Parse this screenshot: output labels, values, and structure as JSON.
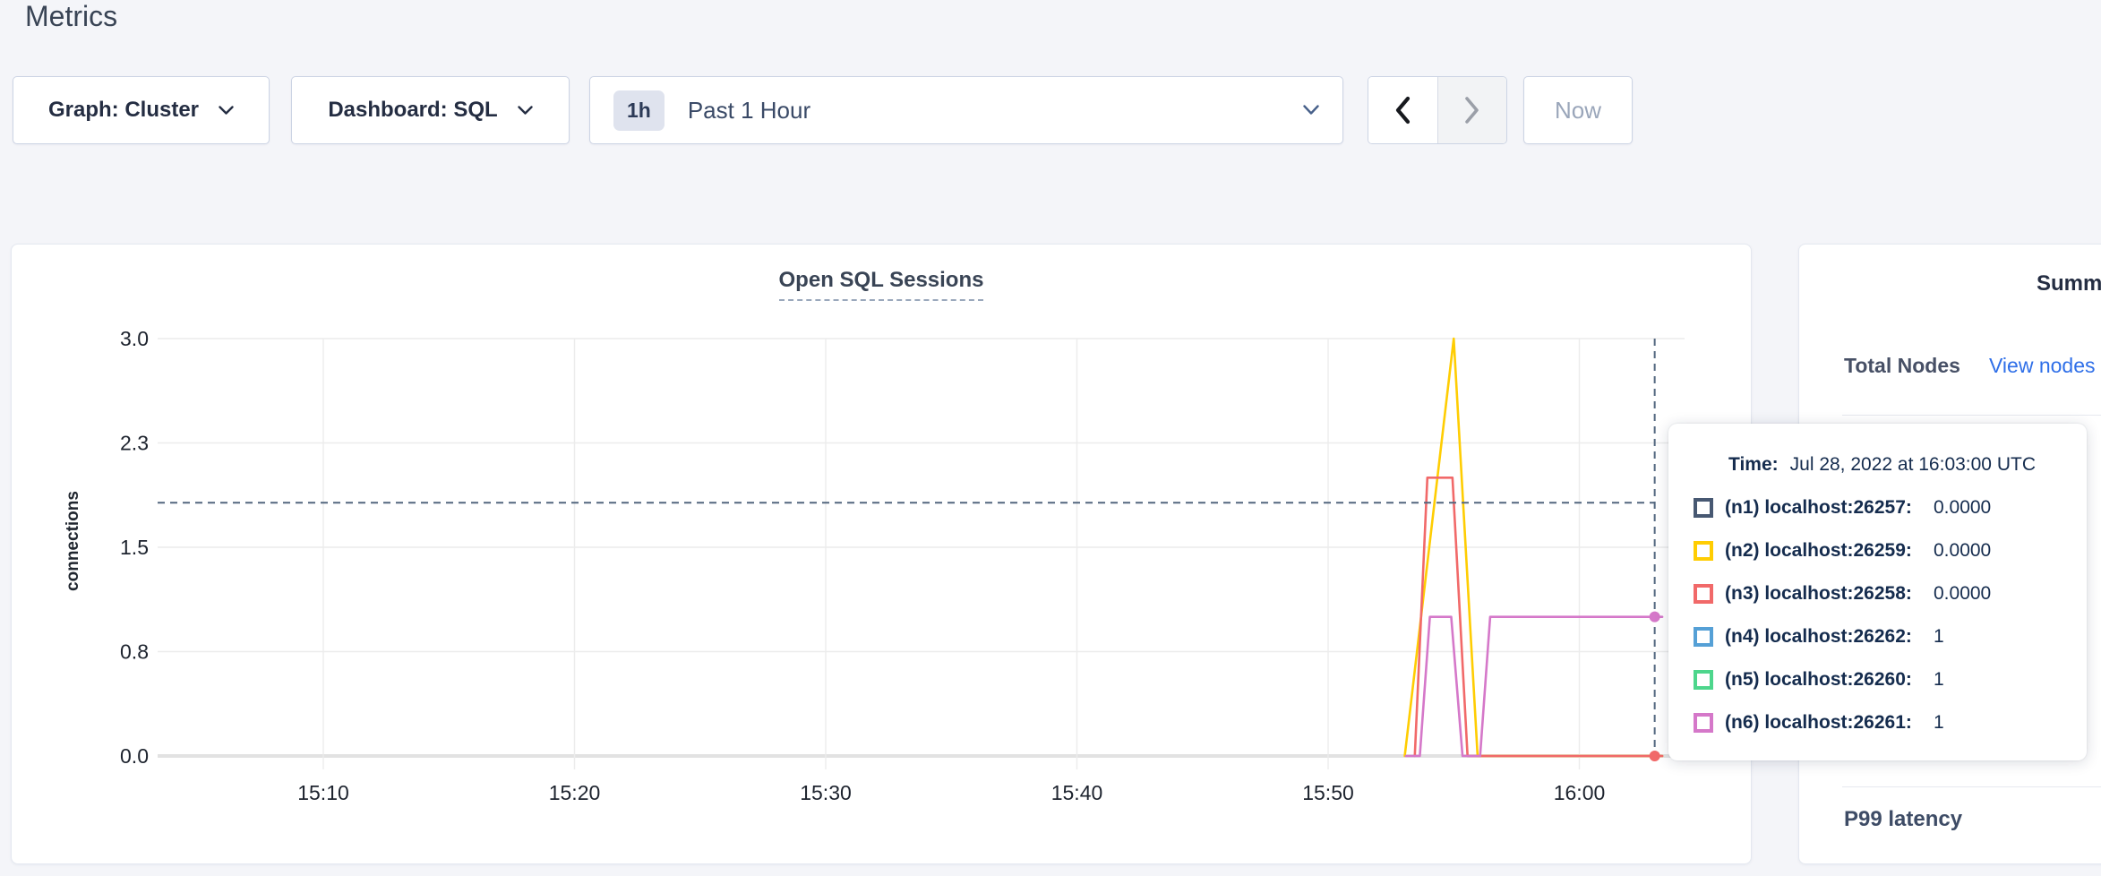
{
  "page": {
    "title": "Metrics"
  },
  "controls": {
    "graph_dropdown": {
      "label": "Graph: Cluster"
    },
    "dashboard_dropdown": {
      "label": "Dashboard: SQL"
    },
    "time_range": {
      "badge": "1h",
      "label": "Past 1 Hour"
    },
    "prev_button": {
      "enabled": true
    },
    "next_button": {
      "enabled": false
    },
    "now_button": {
      "label": "Now",
      "enabled": false
    }
  },
  "chart_data": {
    "type": "line",
    "title": "Open SQL Sessions",
    "ylabel": "connections",
    "ylim": [
      0,
      3
    ],
    "grid": true,
    "yticks": [
      {
        "v": 0,
        "label": "0.0"
      },
      {
        "v": 0.75,
        "label": "0.8"
      },
      {
        "v": 1.5,
        "label": "1.5"
      },
      {
        "v": 2.25,
        "label": "2.3"
      },
      {
        "v": 3,
        "label": "3.0"
      }
    ],
    "xticks": [
      {
        "t": 10,
        "label": "15:10"
      },
      {
        "t": 20,
        "label": "15:20"
      },
      {
        "t": 30,
        "label": "15:30"
      },
      {
        "t": 40,
        "label": "15:40"
      },
      {
        "t": 50,
        "label": "15:50"
      },
      {
        "t": 60,
        "label": "16:00"
      }
    ],
    "x_unit": "minutes after 15:00 UTC",
    "series": [
      {
        "id": "n1",
        "name": "(n1) localhost:26257",
        "color": "#475872",
        "value_at_cursor": "0.0000",
        "visible_line": false,
        "points": []
      },
      {
        "id": "n2",
        "name": "(n2) localhost:26259",
        "color": "#ffcd02",
        "value_at_cursor": "0.0000",
        "visible_line": true,
        "points": [
          [
            53.05,
            0
          ],
          [
            55.0,
            3
          ],
          [
            55.95,
            0
          ],
          [
            63.3,
            0
          ]
        ]
      },
      {
        "id": "n3",
        "name": "(n3) localhost:26258",
        "color": "#f16969",
        "value_at_cursor": "0.0000",
        "visible_line": true,
        "points": [
          [
            53.45,
            0
          ],
          [
            53.95,
            2
          ],
          [
            54.95,
            2
          ],
          [
            55.55,
            0
          ],
          [
            63.3,
            0
          ]
        ]
      },
      {
        "id": "n4",
        "name": "(n4) localhost:26262",
        "color": "#55a0d6",
        "value_at_cursor": "1",
        "visible_line": false,
        "points": []
      },
      {
        "id": "n5",
        "name": "(n5) localhost:26260",
        "color": "#4dd68c",
        "value_at_cursor": "1",
        "visible_line": false,
        "points": []
      },
      {
        "id": "n6",
        "name": "(n6) localhost:26261",
        "color": "#d578c9",
        "value_at_cursor": "1",
        "visible_line": true,
        "points": [
          [
            53.1,
            0
          ],
          [
            53.65,
            0
          ],
          [
            54.05,
            1
          ],
          [
            54.9,
            1
          ],
          [
            55.35,
            0
          ],
          [
            56.05,
            0
          ],
          [
            56.45,
            1
          ],
          [
            63.3,
            1
          ]
        ]
      }
    ],
    "crosshair": {
      "t": 63,
      "v": 1.82,
      "dots": [
        {
          "series": "n6",
          "v": 1
        },
        {
          "series": "n3",
          "v": 0
        }
      ]
    }
  },
  "tooltip": {
    "time_label": "Time:",
    "time_value": "Jul 28, 2022 at 16:03:00 UTC"
  },
  "sidebar": {
    "heading": "Summary",
    "total_nodes_label": "Total Nodes",
    "view_nodes_link": "View nodes list",
    "p99_label": "P99 latency"
  }
}
